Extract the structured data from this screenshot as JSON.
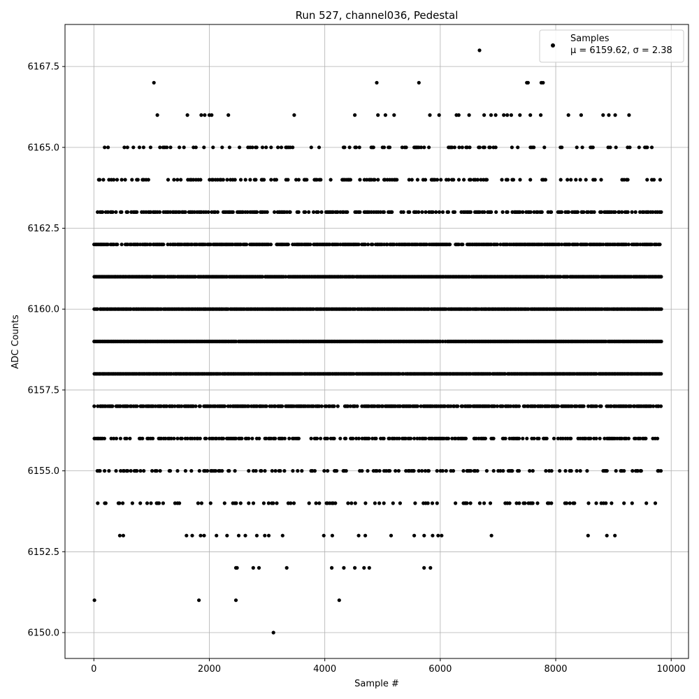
{
  "chart_data": {
    "type": "scatter",
    "title": "Run 527, channel036, Pedestal",
    "xlabel": "Sample #",
    "ylabel": "ADC Counts",
    "xlim": [
      -500,
      10300
    ],
    "ylim": [
      6149.2,
      6168.8
    ],
    "xticks": [
      0,
      2000,
      4000,
      6000,
      8000,
      10000
    ],
    "yticks": [
      6150.0,
      6152.5,
      6155.0,
      6157.5,
      6160.0,
      6162.5,
      6165.0,
      6167.5
    ],
    "xtick_labels": [
      "0",
      "2000",
      "4000",
      "6000",
      "8000",
      "10000"
    ],
    "ytick_labels": [
      "6150.0",
      "6152.5",
      "6155.0",
      "6157.5",
      "6160.0",
      "6162.5",
      "6165.0",
      "6167.5"
    ],
    "grid": true,
    "legend": {
      "placement": "top-right",
      "entries": [
        "Samples",
        "μ = 6159.62, σ = 2.38"
      ]
    },
    "marker_color": "#000000",
    "series": [
      {
        "name": "Samples",
        "x_range": [
          0,
          9830
        ],
        "levels": [
          {
            "y": 6158,
            "density": 0.97,
            "x_range": [
              0,
              9830
            ]
          },
          {
            "y": 6159,
            "density": 0.97,
            "x_range": [
              0,
              9830
            ]
          },
          {
            "y": 6160,
            "density": 0.97,
            "x_range": [
              0,
              9830
            ]
          },
          {
            "y": 6161,
            "density": 0.97,
            "x_range": [
              0,
              9830
            ]
          },
          {
            "y": 6162,
            "density": 0.8,
            "x_range": [
              0,
              9830
            ]
          },
          {
            "y": 6157,
            "density": 0.75,
            "x_range": [
              0,
              9830
            ]
          },
          {
            "y": 6163,
            "density": 0.5,
            "x_range": [
              0,
              9830
            ]
          },
          {
            "y": 6156,
            "density": 0.5,
            "x_range": [
              0,
              9830
            ]
          },
          {
            "y": 6164,
            "density": 0.3,
            "x_range": [
              0,
              9830
            ]
          },
          {
            "y": 6155,
            "density": 0.3,
            "x_range": [
              0,
              9830
            ]
          },
          {
            "y": 6165,
            "density": 0.2,
            "x_range": [
              0,
              9830
            ]
          },
          {
            "y": 6154,
            "density": 0.18,
            "x_range": [
              0,
              9830
            ]
          },
          {
            "y": 6153,
            "density": 0.06,
            "x_range": [
              0,
              9830
            ]
          }
        ],
        "points": [
          [
            1040,
            6167
          ],
          [
            4900,
            6167
          ],
          [
            5630,
            6167
          ],
          [
            7500,
            6167
          ],
          [
            7520,
            6167
          ],
          [
            7750,
            6167
          ],
          [
            7780,
            6167
          ],
          [
            6680,
            6168
          ],
          [
            1100,
            6166
          ],
          [
            1620,
            6166
          ],
          [
            1860,
            6166
          ],
          [
            1920,
            6166
          ],
          [
            2000,
            6166
          ],
          [
            2040,
            6166
          ],
          [
            2330,
            6166
          ],
          [
            3470,
            6166
          ],
          [
            4520,
            6166
          ],
          [
            4920,
            6166
          ],
          [
            5050,
            6166
          ],
          [
            5200,
            6166
          ],
          [
            5820,
            6166
          ],
          [
            5980,
            6166
          ],
          [
            6280,
            6166
          ],
          [
            6320,
            6166
          ],
          [
            6500,
            6166
          ],
          [
            6760,
            6166
          ],
          [
            6880,
            6166
          ],
          [
            6960,
            6166
          ],
          [
            7100,
            6166
          ],
          [
            7160,
            6166
          ],
          [
            7230,
            6166
          ],
          [
            7380,
            6166
          ],
          [
            7560,
            6166
          ],
          [
            7740,
            6166
          ],
          [
            8220,
            6166
          ],
          [
            8440,
            6166
          ],
          [
            8820,
            6166
          ],
          [
            8920,
            6166
          ],
          [
            9030,
            6166
          ],
          [
            9270,
            6166
          ],
          [
            2480,
            6152
          ],
          [
            2860,
            6152
          ],
          [
            3340,
            6152
          ],
          [
            4120,
            6152
          ],
          [
            4330,
            6152
          ],
          [
            4520,
            6152
          ],
          [
            4680,
            6152
          ],
          [
            4770,
            6152
          ],
          [
            5720,
            6152
          ],
          [
            5830,
            6152
          ],
          [
            2460,
            6152
          ],
          [
            2760,
            6152
          ],
          [
            10,
            6151
          ],
          [
            1820,
            6151
          ],
          [
            2460,
            6151
          ],
          [
            4250,
            6151
          ],
          [
            3110,
            6150
          ]
        ]
      }
    ]
  }
}
